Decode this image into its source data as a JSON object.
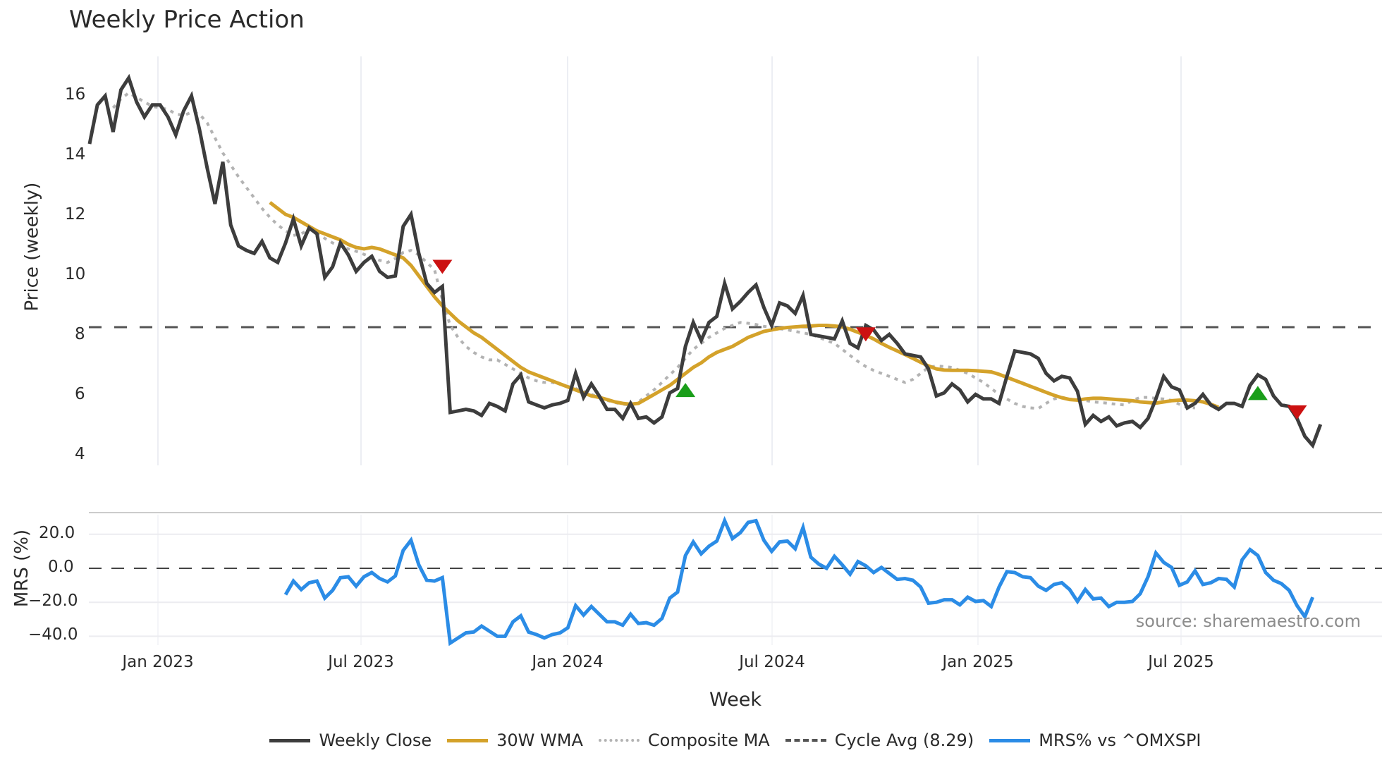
{
  "title": "Weekly Price Action",
  "price_axis_label": "Price (weekly)",
  "mrs_axis_label": "MRS (%)",
  "x_axis_label": "Week",
  "source_text": "source: sharemaestro.com",
  "price_ticks": [
    "16",
    "14",
    "12",
    "10",
    "8",
    "6",
    "4"
  ],
  "mrs_ticks": [
    "20.0",
    "0.0",
    "−20.0",
    "−40.0"
  ],
  "x_ticks": [
    "Jan 2023",
    "Jul 2023",
    "Jan 2024",
    "Jul 2024",
    "Jan 2025",
    "Jul 2025"
  ],
  "legend": [
    {
      "label": "Weekly Close",
      "color": "#3d3d3d",
      "style": "solid"
    },
    {
      "label": "30W WMA",
      "color": "#d4a22a",
      "style": "solid"
    },
    {
      "label": "Composite MA",
      "color": "#b3b3b3",
      "style": "dotted"
    },
    {
      "label": "Cycle Avg (8.29)",
      "color": "#555555",
      "style": "dashed"
    },
    {
      "label": "MRS% vs ^OMXSPI",
      "color": "#2b8ce6",
      "style": "solid"
    }
  ],
  "colors": {
    "close": "#3d3d3d",
    "wma": "#d4a22a",
    "composite": "#b3b3b3",
    "cycle": "#555555",
    "mrs": "#2b8ce6",
    "buy": "#1a9e1a",
    "sell": "#cc1111",
    "grid": "#eceef3"
  },
  "chart_data": [
    {
      "type": "line",
      "title": "Weekly Price Action",
      "xlabel": "Week",
      "ylabel": "Price (weekly)",
      "ylim": [
        3.6,
        17.2
      ],
      "x_tick_labels": [
        "Jan 2023",
        "Jul 2023",
        "Jan 2024",
        "Jul 2024",
        "Jan 2025",
        "Jul 2025"
      ],
      "x_tick_week_index": [
        9,
        35,
        61,
        87,
        113,
        139
      ],
      "grid": "vertical",
      "legend_position": "bottom",
      "cycle_avg": 8.29,
      "series": [
        {
          "name": "Weekly Close",
          "start_index": 0,
          "values": [
            14.4,
            15.7,
            16.0,
            14.8,
            16.2,
            16.6,
            15.8,
            15.3,
            15.7,
            15.7,
            15.3,
            14.7,
            15.5,
            16.0,
            14.9,
            13.6,
            12.4,
            13.8,
            11.7,
            11.0,
            10.85,
            10.75,
            11.15,
            10.6,
            10.45,
            11.1,
            11.9,
            11.0,
            11.6,
            11.4,
            9.95,
            10.3,
            11.1,
            10.7,
            10.15,
            10.45,
            10.65,
            10.15,
            9.95,
            10.0,
            11.65,
            12.05,
            10.75,
            9.75,
            9.45,
            9.65,
            5.45,
            5.5,
            5.55,
            5.5,
            5.35,
            5.75,
            5.65,
            5.5,
            6.4,
            6.7,
            5.8,
            5.7,
            5.6,
            5.7,
            5.75,
            5.85,
            6.75,
            5.95,
            6.4,
            6.0,
            5.55,
            5.55,
            5.25,
            5.75,
            5.25,
            5.3,
            5.1,
            5.3,
            6.1,
            6.25,
            7.65,
            8.45,
            7.85,
            8.45,
            8.65,
            9.75,
            8.9,
            9.15,
            9.45,
            9.7,
            8.95,
            8.35,
            9.1,
            9.0,
            8.75,
            9.35,
            8.05,
            8.0,
            7.95,
            7.9,
            8.5,
            7.75,
            7.6,
            8.35,
            8.2,
            7.85,
            8.05,
            7.75,
            7.4,
            7.35,
            7.3,
            6.9,
            6.0,
            6.1,
            6.4,
            6.2,
            5.8,
            6.05,
            5.9,
            5.9,
            5.75,
            6.65,
            7.5,
            7.45,
            7.4,
            7.25,
            6.75,
            6.5,
            6.65,
            6.6,
            6.15,
            5.05,
            5.35,
            5.15,
            5.3,
            5.0,
            5.1,
            5.15,
            4.95,
            5.25,
            5.9,
            6.65,
            6.3,
            6.2,
            5.6,
            5.75,
            6.05,
            5.7,
            5.55,
            5.75,
            5.75,
            5.65,
            6.35,
            6.7,
            6.55,
            6.0,
            5.7,
            5.65,
            5.25,
            4.65,
            4.35,
            5.05
          ]
        },
        {
          "name": "30W WMA",
          "start_index": 23,
          "values": [
            12.45,
            12.25,
            12.05,
            11.95,
            11.8,
            11.65,
            11.5,
            11.4,
            11.3,
            11.2,
            11.05,
            10.95,
            10.9,
            10.95,
            10.9,
            10.8,
            10.7,
            10.6,
            10.35,
            10.0,
            9.65,
            9.3,
            9.0,
            8.75,
            8.5,
            8.3,
            8.1,
            7.95,
            7.75,
            7.55,
            7.35,
            7.15,
            6.95,
            6.8,
            6.7,
            6.6,
            6.5,
            6.4,
            6.3,
            6.2,
            6.1,
            6.0,
            5.95,
            5.88,
            5.8,
            5.75,
            5.72,
            5.75,
            5.9,
            6.05,
            6.2,
            6.35,
            6.55,
            6.75,
            6.95,
            7.1,
            7.3,
            7.45,
            7.55,
            7.65,
            7.8,
            7.95,
            8.05,
            8.15,
            8.2,
            8.25,
            8.28,
            8.3,
            8.32,
            8.33,
            8.35,
            8.35,
            8.33,
            8.3,
            8.22,
            8.12,
            8.02,
            7.9,
            7.75,
            7.62,
            7.5,
            7.38,
            7.25,
            7.12,
            7.0,
            6.9,
            6.86,
            6.85,
            6.85,
            6.85,
            6.84,
            6.82,
            6.8,
            6.72,
            6.62,
            6.52,
            6.42,
            6.32,
            6.22,
            6.12,
            6.02,
            5.94,
            5.88,
            5.86,
            5.9,
            5.92,
            5.92,
            5.9,
            5.88,
            5.86,
            5.84,
            5.8,
            5.78,
            5.76,
            5.8,
            5.84,
            5.86,
            5.86,
            5.84,
            5.8,
            5.72,
            5.62
          ]
        },
        {
          "name": "Composite MA",
          "start_index": 3,
          "values": [
            15.6,
            15.9,
            16.1,
            15.95,
            15.8,
            15.65,
            15.6,
            15.55,
            15.4,
            15.35,
            15.45,
            15.4,
            15.1,
            14.6,
            14.1,
            13.7,
            13.3,
            12.95,
            12.6,
            12.25,
            11.95,
            11.7,
            11.5,
            11.35,
            11.4,
            11.55,
            11.45,
            11.25,
            11.1,
            10.98,
            10.9,
            10.82,
            10.72,
            10.62,
            10.52,
            10.45,
            10.58,
            10.78,
            10.85,
            10.7,
            10.45,
            10.2,
            9.2,
            8.35,
            7.95,
            7.65,
            7.45,
            7.3,
            7.2,
            7.2,
            7.05,
            6.9,
            6.75,
            6.6,
            6.5,
            6.45,
            6.45,
            6.4,
            6.32,
            6.25,
            6.15,
            6.05,
            5.95,
            5.85,
            5.78,
            5.72,
            5.7,
            5.8,
            6.0,
            6.2,
            6.45,
            6.7,
            6.95,
            7.25,
            7.55,
            7.75,
            7.95,
            8.1,
            8.25,
            8.35,
            8.45,
            8.42,
            8.38,
            8.32,
            8.28,
            8.24,
            8.2,
            8.15,
            8.1,
            8.05,
            7.95,
            7.85,
            7.75,
            7.55,
            7.35,
            7.15,
            6.98,
            6.85,
            6.75,
            6.65,
            6.55,
            6.45,
            6.55,
            6.75,
            6.95,
            7.0,
            6.98,
            6.95,
            6.85,
            6.75,
            6.6,
            6.45,
            6.25,
            6.05,
            5.9,
            5.75,
            5.65,
            5.6,
            5.58,
            5.75,
            5.9,
            5.95,
            5.9,
            5.85,
            5.85,
            5.8,
            5.78,
            5.75,
            5.72,
            5.7,
            5.85,
            5.95,
            5.95,
            5.92,
            5.9,
            5.85,
            5.72,
            5.62,
            5.6
          ]
        },
        {
          "name": "Cycle Avg (8.29)",
          "constant": 8.29
        }
      ],
      "markers": [
        {
          "type": "sell",
          "week_index": 45,
          "price": 10.3
        },
        {
          "type": "buy",
          "week_index": 76,
          "price": 6.15
        },
        {
          "type": "sell",
          "week_index": 99,
          "price": 8.05
        },
        {
          "type": "buy",
          "week_index": 149,
          "price": 6.05
        },
        {
          "type": "sell",
          "week_index": 154,
          "price": 5.45
        }
      ]
    },
    {
      "type": "line",
      "title": "",
      "xlabel": "Week",
      "ylabel": "MRS (%)",
      "ylim": [
        -48,
        33
      ],
      "y_ticks": [
        20.0,
        0.0,
        -20.0,
        -40.0
      ],
      "reference_line": 0.0,
      "series": [
        {
          "name": "MRS% vs ^OMXSPI",
          "start_index": 25,
          "values": [
            -15.5,
            -7.5,
            -12.5,
            -8.5,
            -7.5,
            -17.5,
            -13.0,
            -5.5,
            -5.0,
            -10.5,
            -5.0,
            -2.5,
            -6.0,
            -8.0,
            -4.5,
            10.5,
            16.5,
            2.0,
            -7.0,
            -7.5,
            -5.5,
            -44.0,
            -41.0,
            -38.0,
            -37.5,
            -34.0,
            -37.0,
            -40.0,
            -40.0,
            -31.5,
            -28.0,
            -37.5,
            -39.0,
            -41.0,
            -39.0,
            -38.0,
            -35.0,
            -22.0,
            -27.5,
            -22.5,
            -27.0,
            -31.5,
            -31.5,
            -33.5,
            -27.0,
            -32.5,
            -32.0,
            -33.5,
            -29.5,
            -17.5,
            -14.0,
            7.5,
            15.5,
            8.5,
            13.0,
            16.0,
            28.0,
            17.5,
            21.0,
            27.0,
            28.0,
            16.5,
            10.0,
            15.5,
            16.0,
            11.5,
            24.0,
            6.5,
            2.5,
            0.0,
            7.0,
            2.0,
            -3.5,
            4.0,
            1.5,
            -2.5,
            0.5,
            -3.0,
            -6.5,
            -6.0,
            -7.0,
            -11.0,
            -20.5,
            -20.0,
            -18.5,
            -18.5,
            -21.5,
            -17.0,
            -19.5,
            -19.0,
            -22.5,
            -11.0,
            -2.0,
            -2.5,
            -5.0,
            -5.5,
            -10.5,
            -13.0,
            -9.5,
            -8.5,
            -12.5,
            -19.5,
            -12.5,
            -18.0,
            -17.5,
            -22.5,
            -20.0,
            -20.0,
            -19.5,
            -15.0,
            -5.0,
            9.0,
            3.5,
            0.5,
            -10.0,
            -8.0,
            -1.5,
            -9.5,
            -8.5,
            -6.0,
            -6.5,
            -11.0,
            5.0,
            11.0,
            7.5,
            -2.5,
            -7.0,
            -9.0,
            -13.0,
            -22.0,
            -28.5,
            -17.0
          ]
        }
      ]
    }
  ]
}
